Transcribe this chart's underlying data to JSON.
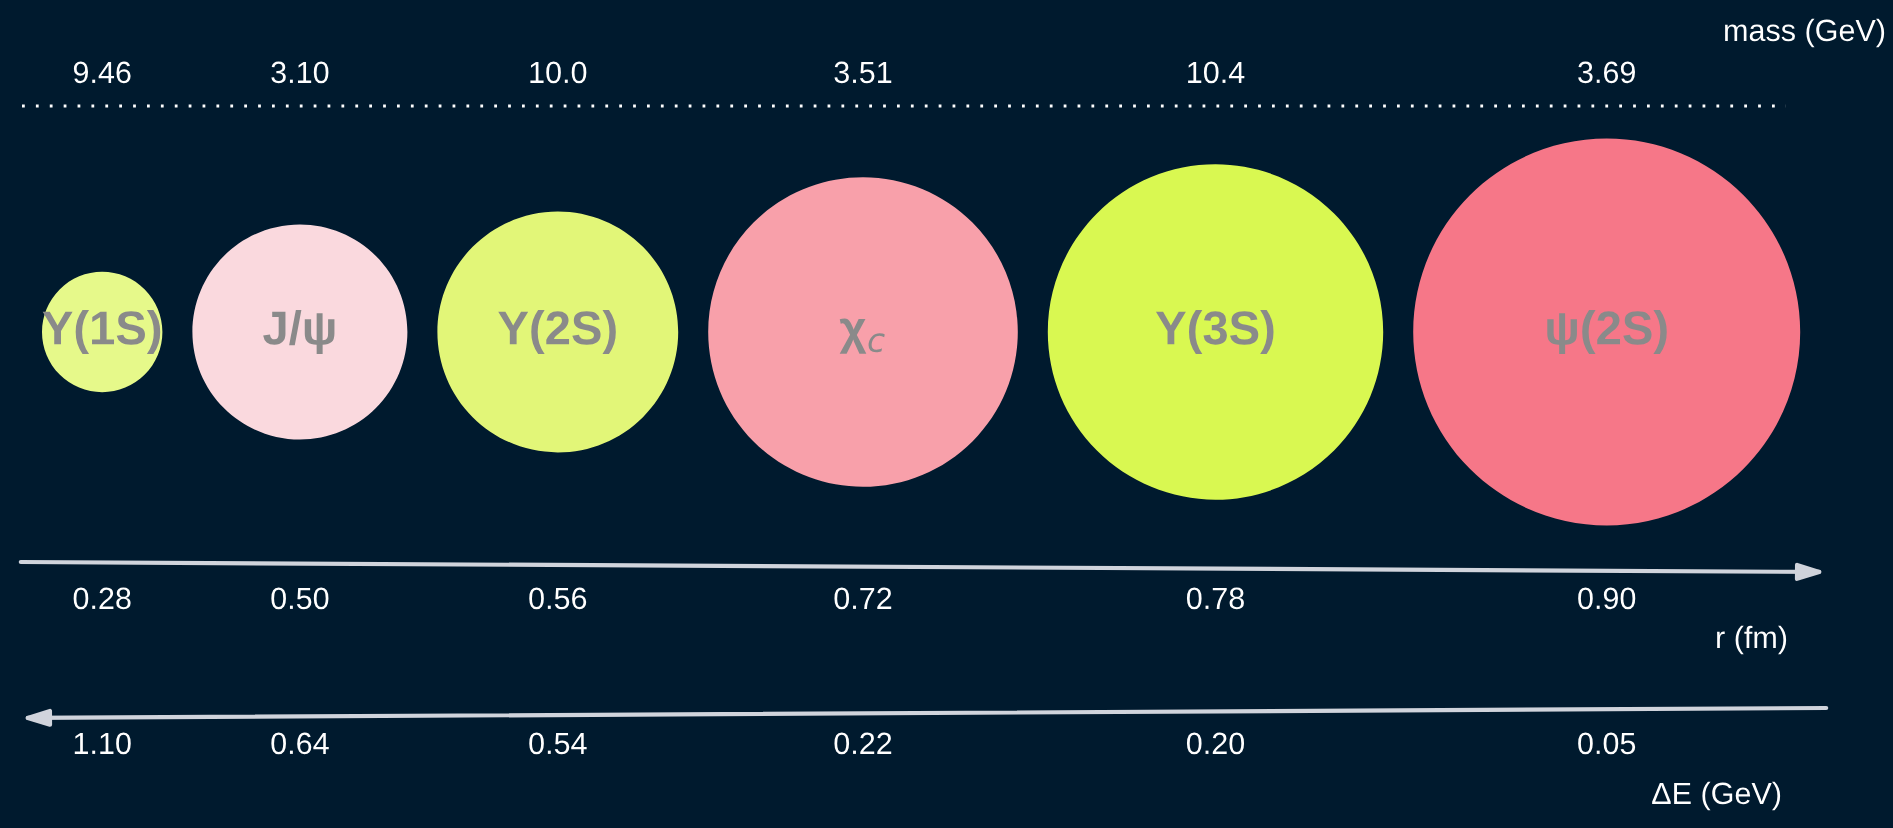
{
  "chart_data": {
    "type": "other",
    "categories": [
      "Υ(1S)",
      "J/ψ",
      "Υ(2S)",
      "χ$_{c}$",
      "Υ(3S)",
      "ψ(2S)"
    ],
    "colors": [
      "#e6f98a",
      "#fad9de",
      "#e2f678",
      "#f8a0aa",
      "#d9f851",
      "#f67788"
    ],
    "series": [
      {
        "name": "mass (GeV)",
        "values": [
          9.46,
          3.1,
          10.0,
          3.51,
          10.4,
          3.69
        ],
        "value_labels": [
          "9.46",
          "3.10",
          "10.0",
          "3.51",
          "10.4",
          "3.69"
        ]
      },
      {
        "name": "r (fm)",
        "values": [
          0.28,
          0.5,
          0.56,
          0.72,
          0.78,
          0.9
        ],
        "value_labels": [
          "0.28",
          "0.50",
          "0.56",
          "0.72",
          "0.78",
          "0.90"
        ]
      },
      {
        "name": "ΔE (GeV)",
        "values": [
          1.1,
          0.64,
          0.54,
          0.22,
          0.2,
          0.05
        ],
        "value_labels": [
          "1.10",
          "0.64",
          "0.54",
          "0.22",
          "0.20",
          "0.05"
        ]
      }
    ]
  }
}
